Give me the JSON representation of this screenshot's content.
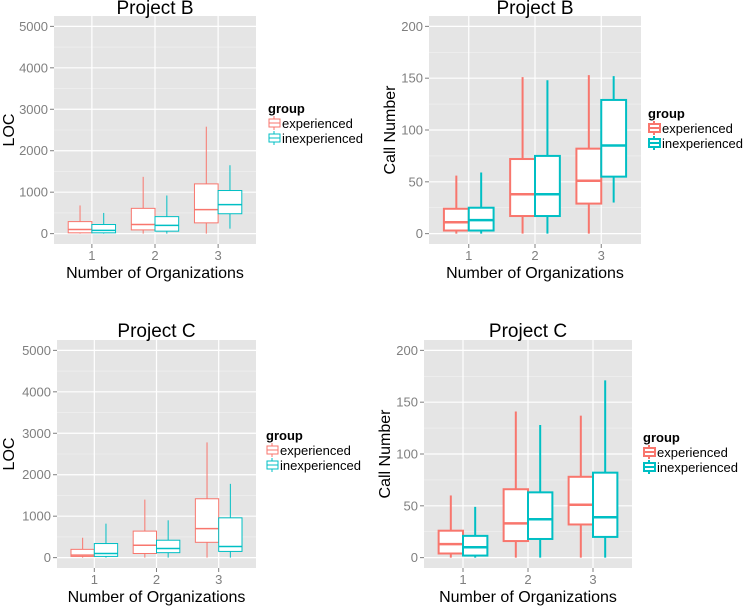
{
  "chart_data": [
    {
      "type": "boxplot",
      "title": "Project B",
      "xlabel": "Number of Organizations",
      "ylabel": "LOC",
      "categories": [
        "1",
        "2",
        "3"
      ],
      "yticks": [
        0,
        1000,
        2000,
        3000,
        4000,
        5000
      ],
      "ylim": [
        -250,
        5250
      ],
      "grid": true,
      "legend": {
        "title": "group",
        "position": "right",
        "entries": [
          "experienced",
          "inexperienced"
        ]
      },
      "series": [
        {
          "name": "experienced",
          "color": "#f8766d",
          "boxes": [
            {
              "min": 0,
              "q1": 20,
              "median": 100,
              "q3": 290,
              "max": 680
            },
            {
              "min": 0,
              "q1": 90,
              "median": 220,
              "q3": 610,
              "max": 1370
            },
            {
              "min": 0,
              "q1": 260,
              "median": 580,
              "q3": 1200,
              "max": 2580
            }
          ]
        },
        {
          "name": "inexperienced",
          "color": "#00bfc4",
          "boxes": [
            {
              "min": 0,
              "q1": 20,
              "median": 80,
              "q3": 220,
              "max": 500
            },
            {
              "min": 0,
              "q1": 60,
              "median": 200,
              "q3": 410,
              "max": 920
            },
            {
              "min": 120,
              "q1": 480,
              "median": 700,
              "q3": 1040,
              "max": 1650
            }
          ]
        }
      ]
    },
    {
      "type": "boxplot",
      "title": "Project B",
      "xlabel": "Number of Organizations",
      "ylabel": "Call Number",
      "categories": [
        "1",
        "2",
        "3"
      ],
      "yticks": [
        0,
        50,
        100,
        150,
        200
      ],
      "ylim": [
        -10,
        210
      ],
      "grid": true,
      "legend": {
        "title": "group",
        "position": "right",
        "entries": [
          "experienced",
          "inexperienced"
        ]
      },
      "series": [
        {
          "name": "experienced",
          "color": "#f8766d",
          "boxes": [
            {
              "min": 0,
              "q1": 3,
              "median": 11,
              "q3": 24,
              "max": 56
            },
            {
              "min": 0,
              "q1": 17,
              "median": 38,
              "q3": 72,
              "max": 151
            },
            {
              "min": 0,
              "q1": 29,
              "median": 51,
              "q3": 82,
              "max": 153
            }
          ]
        },
        {
          "name": "inexperienced",
          "color": "#00bfc4",
          "boxes": [
            {
              "min": 0,
              "q1": 3,
              "median": 13,
              "q3": 25,
              "max": 59
            },
            {
              "min": 0,
              "q1": 17,
              "median": 38,
              "q3": 75,
              "max": 148
            },
            {
              "min": 30,
              "q1": 55,
              "median": 85,
              "q3": 129,
              "max": 152
            }
          ]
        }
      ]
    },
    {
      "type": "boxplot",
      "title": "Project C",
      "xlabel": "Number of Organizations",
      "ylabel": "LOC",
      "categories": [
        "1",
        "2",
        "3"
      ],
      "yticks": [
        0,
        1000,
        2000,
        3000,
        4000,
        5000
      ],
      "ylim": [
        -250,
        5250
      ],
      "grid": true,
      "legend": {
        "title": "group",
        "position": "right",
        "entries": [
          "experienced",
          "inexperienced"
        ]
      },
      "series": [
        {
          "name": "experienced",
          "color": "#f8766d",
          "boxes": [
            {
              "min": 0,
              "q1": 30,
              "median": 60,
              "q3": 200,
              "max": 480
            },
            {
              "min": 0,
              "q1": 100,
              "median": 300,
              "q3": 640,
              "max": 1400
            },
            {
              "min": 0,
              "q1": 370,
              "median": 700,
              "q3": 1420,
              "max": 2780
            }
          ]
        },
        {
          "name": "inexperienced",
          "color": "#00bfc4",
          "boxes": [
            {
              "min": 0,
              "q1": 30,
              "median": 100,
              "q3": 340,
              "max": 820
            },
            {
              "min": 0,
              "q1": 120,
              "median": 220,
              "q3": 420,
              "max": 900
            },
            {
              "min": 0,
              "q1": 150,
              "median": 270,
              "q3": 960,
              "max": 1780
            }
          ]
        }
      ]
    },
    {
      "type": "boxplot",
      "title": "Project C",
      "xlabel": "Number of Organizations",
      "ylabel": "Call Number",
      "categories": [
        "1",
        "2",
        "3"
      ],
      "yticks": [
        0,
        50,
        100,
        150,
        200
      ],
      "ylim": [
        -10,
        210
      ],
      "grid": true,
      "legend": {
        "title": "group",
        "position": "right",
        "entries": [
          "experienced",
          "inexperienced"
        ]
      },
      "series": [
        {
          "name": "experienced",
          "color": "#f8766d",
          "boxes": [
            {
              "min": 0,
              "q1": 4,
              "median": 13,
              "q3": 26,
              "max": 60
            },
            {
              "min": 0,
              "q1": 16,
              "median": 33,
              "q3": 66,
              "max": 141
            },
            {
              "min": 0,
              "q1": 32,
              "median": 51,
              "q3": 78,
              "max": 137
            }
          ]
        },
        {
          "name": "inexperienced",
          "color": "#00bfc4",
          "boxes": [
            {
              "min": 0,
              "q1": 2,
              "median": 10,
              "q3": 21,
              "max": 49
            },
            {
              "min": 0,
              "q1": 18,
              "median": 37,
              "q3": 63,
              "max": 128
            },
            {
              "min": 0,
              "q1": 20,
              "median": 39,
              "q3": 82,
              "max": 171
            }
          ]
        }
      ]
    }
  ]
}
